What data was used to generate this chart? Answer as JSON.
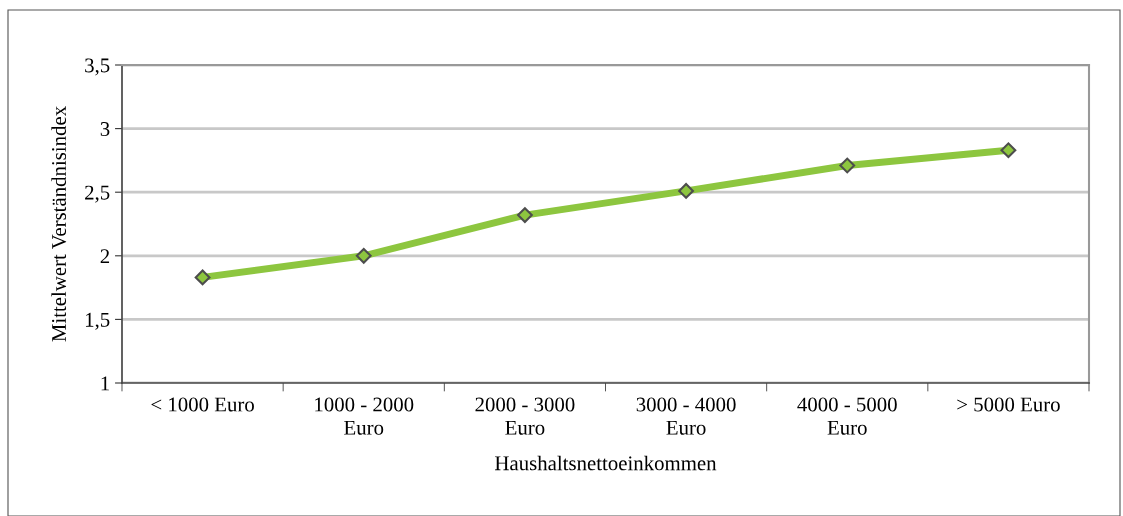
{
  "chart_data": {
    "type": "line",
    "xlabel": "Haushaltsnettoeinkommen",
    "ylabel": "Mittelwert Verständnisindex",
    "categories": [
      "< 1000 Euro",
      "1000 - 2000\nEuro",
      "2000 - 3000\nEuro",
      "3000 - 4000\nEuro",
      "4000 - 5000\nEuro",
      "> 5000 Euro"
    ],
    "series": [
      {
        "color": "#8dc63f",
        "values": [
          1.83,
          2.0,
          2.32,
          2.51,
          2.71,
          2.83
        ]
      }
    ],
    "ylim": [
      1,
      3.5
    ],
    "yticks": [
      1,
      {
        "value": 1.5,
        "label": "1,5"
      },
      2,
      {
        "value": 2.5,
        "label": "2,5"
      },
      3,
      {
        "value": 3.5,
        "label": "3,5"
      }
    ],
    "grid": "y",
    "marker": "diamond",
    "line_style": "solid"
  }
}
